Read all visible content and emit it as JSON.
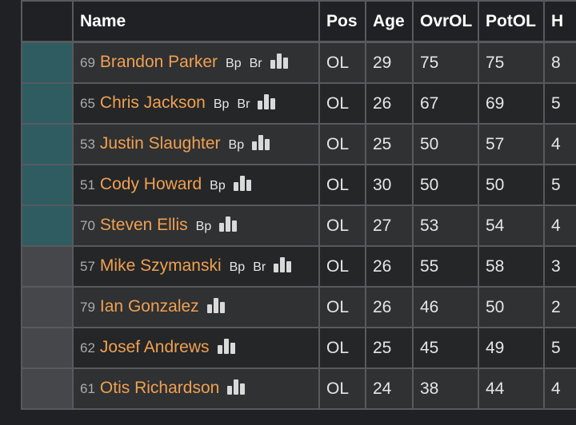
{
  "headers": {
    "name": "Name",
    "pos": "Pos",
    "age": "Age",
    "ovr": "OvrOL",
    "pot": "PotOL",
    "next": "H"
  },
  "rows": [
    {
      "status": "teal",
      "num": "69",
      "name": "Brandon Parker",
      "tags": [
        "Bp",
        "Br"
      ],
      "pos": "OL",
      "age": "29",
      "ovr": "75",
      "pot": "75",
      "next": "8"
    },
    {
      "status": "teal",
      "num": "65",
      "name": "Chris Jackson",
      "tags": [
        "Bp",
        "Br"
      ],
      "pos": "OL",
      "age": "26",
      "ovr": "67",
      "pot": "69",
      "next": "5"
    },
    {
      "status": "teal",
      "num": "53",
      "name": "Justin Slaughter",
      "tags": [
        "Bp"
      ],
      "pos": "OL",
      "age": "25",
      "ovr": "50",
      "pot": "57",
      "next": "4"
    },
    {
      "status": "teal",
      "num": "51",
      "name": "Cody Howard",
      "tags": [
        "Bp"
      ],
      "pos": "OL",
      "age": "30",
      "ovr": "50",
      "pot": "50",
      "next": "5"
    },
    {
      "status": "teal",
      "num": "70",
      "name": "Steven Ellis",
      "tags": [
        "Bp"
      ],
      "pos": "OL",
      "age": "27",
      "ovr": "53",
      "pot": "54",
      "next": "4"
    },
    {
      "status": "gray",
      "num": "57",
      "name": "Mike Szymanski",
      "tags": [
        "Bp",
        "Br"
      ],
      "pos": "OL",
      "age": "26",
      "ovr": "55",
      "pot": "58",
      "next": "3"
    },
    {
      "status": "gray",
      "num": "79",
      "name": "Ian Gonzalez",
      "tags": [],
      "pos": "OL",
      "age": "26",
      "ovr": "46",
      "pot": "50",
      "next": "2"
    },
    {
      "status": "gray",
      "num": "62",
      "name": "Josef Andrews",
      "tags": [],
      "pos": "OL",
      "age": "25",
      "ovr": "45",
      "pot": "49",
      "next": "5"
    },
    {
      "status": "gray",
      "num": "61",
      "name": "Otis Richardson",
      "tags": [],
      "pos": "OL",
      "age": "24",
      "ovr": "38",
      "pot": "44",
      "next": "4"
    }
  ],
  "colors": {
    "teal_status": "#2e5c61",
    "gray_status": "#45474a",
    "player_link": "#f0a050"
  },
  "icons": {
    "stats": "bar-chart-icon"
  }
}
